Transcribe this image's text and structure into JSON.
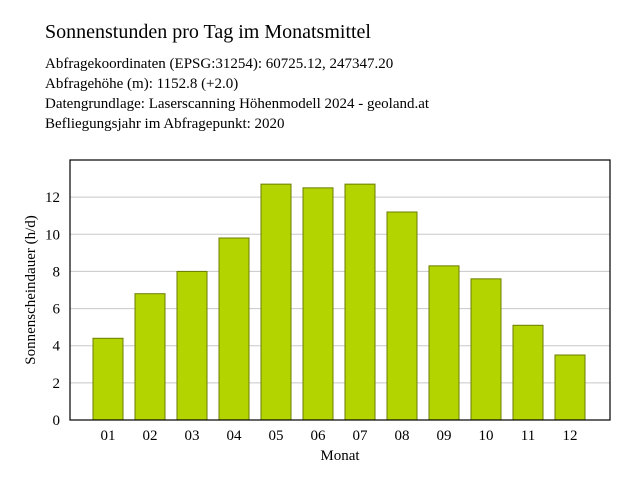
{
  "title": "Sonnenstunden pro Tag im Monatsmittel",
  "info": [
    "Abfragekoordinaten (EPSG:31254): 60725.12, 247347.20",
    "Abfragehöhe (m): 1152.8 (+2.0)",
    "Datengrundlage: Laserscanning Höhenmodell 2024 - geoland.at",
    "Befliegungsjahr im Abfragepunkt: 2020"
  ],
  "chart_data": {
    "type": "bar",
    "categories": [
      "01",
      "02",
      "03",
      "04",
      "05",
      "06",
      "07",
      "08",
      "09",
      "10",
      "11",
      "12"
    ],
    "values": [
      4.4,
      6.8,
      8.0,
      9.8,
      12.7,
      12.5,
      12.7,
      11.2,
      8.3,
      7.6,
      5.1,
      3.5
    ],
    "xlabel": "Monat",
    "ylabel": "Sonnenscheindauer (h/d)",
    "ylim": [
      0,
      14
    ],
    "yticks": [
      0,
      2,
      4,
      6,
      8,
      10,
      12
    ],
    "grid": "horizontal",
    "legend": "none",
    "bar_color": "#b4d400",
    "bar_edge_color": "#6b7d00",
    "grid_color": "#c8c8c8"
  }
}
